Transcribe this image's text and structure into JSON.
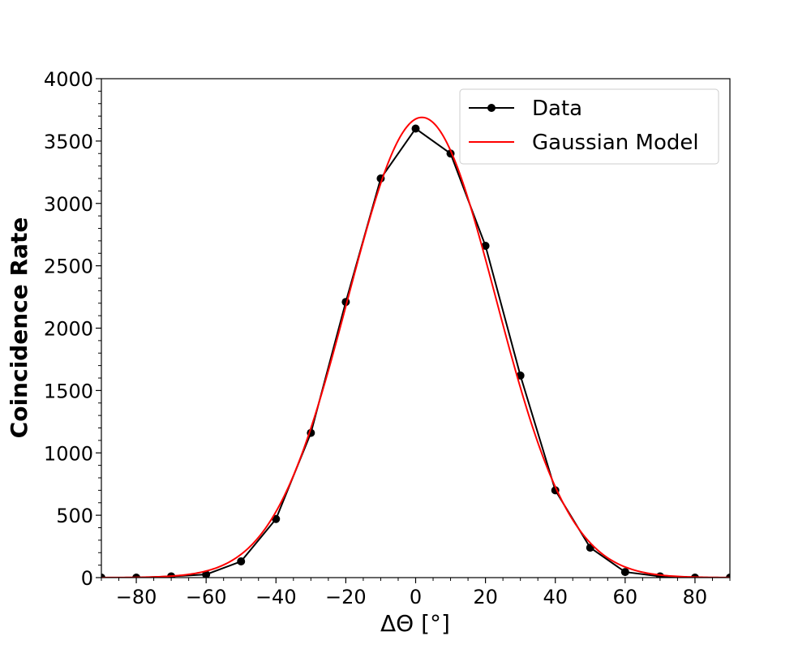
{
  "chart_data": {
    "type": "line",
    "xlabel": "ΔΘ [°]",
    "ylabel": "Coincidence Rate",
    "xlim": [
      -90,
      90
    ],
    "ylim": [
      0,
      4000
    ],
    "xticks": [
      -80,
      -60,
      -40,
      -20,
      0,
      20,
      40,
      60,
      80
    ],
    "yticks": [
      0,
      500,
      1000,
      1500,
      2000,
      2500,
      3000,
      3500,
      4000
    ],
    "x_tick_labels": [
      "−80",
      "−60",
      "−40",
      "−20",
      "0",
      "20",
      "40",
      "60",
      "80"
    ],
    "y_tick_labels": [
      "0",
      "500",
      "1000",
      "1500",
      "2000",
      "2500",
      "3000",
      "3500",
      "4000"
    ],
    "grid": false,
    "legend_position": "top-right",
    "series": [
      {
        "name": "Data",
        "kind": "line-markers",
        "color": "#000000",
        "x": [
          -90,
          -80,
          -70,
          -60,
          -50,
          -40,
          -30,
          -20,
          -10,
          0,
          10,
          20,
          30,
          40,
          50,
          60,
          70,
          80,
          90
        ],
        "y": [
          0,
          0,
          10,
          25,
          130,
          470,
          1160,
          2210,
          3200,
          3600,
          3400,
          2660,
          1620,
          700,
          240,
          45,
          10,
          0,
          0
        ]
      },
      {
        "name": "Gaussian Model",
        "kind": "gaussian",
        "color": "#ff0000",
        "amplitude": 3690,
        "mean": 1.8,
        "sigma": 21.2
      }
    ]
  }
}
